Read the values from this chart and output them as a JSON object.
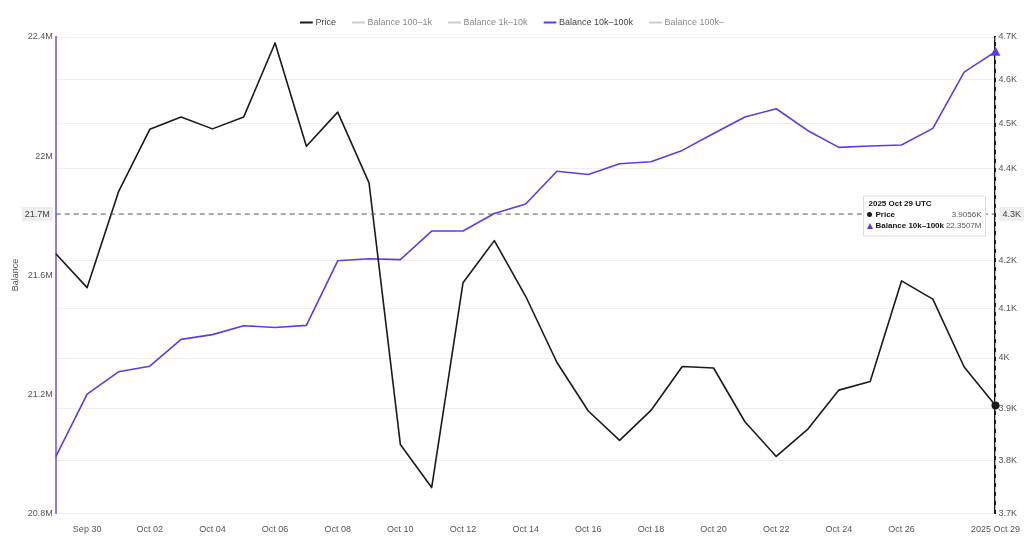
{
  "chart_data": {
    "type": "line",
    "ylabel": "Balance",
    "categories": [
      null,
      "Sep 30",
      null,
      "Oct 02",
      null,
      "Oct 04",
      null,
      "Oct 06",
      null,
      "Oct 08",
      null,
      "Oct 10",
      null,
      "Oct 12",
      null,
      "Oct 14",
      null,
      "Oct 16",
      null,
      "Oct 18",
      null,
      "Oct 20",
      null,
      "Oct 22",
      null,
      "Oct 24",
      null,
      "Oct 26",
      null,
      null,
      "2025 Oct 29"
    ],
    "series": [
      {
        "name": "Price",
        "color": "#1a1a1a",
        "axis": "y2",
        "values": [
          4.215,
          4.144,
          4.348,
          4.487,
          4.515,
          4.488,
          4.515,
          4.686,
          4.449,
          4.526,
          4.368,
          3.83,
          3.748,
          4.154,
          4.243,
          4.126,
          3.991,
          3.895,
          3.838,
          3.896,
          3.983,
          3.98,
          3.874,
          3.807,
          3.859,
          3.936,
          3.953,
          4.158,
          4.12,
          3.982,
          3.9056
        ]
      },
      {
        "name": "Balance 100–1k",
        "color": "#cccccc",
        "values": [
          null,
          null,
          null,
          null,
          null,
          null,
          null,
          null,
          null,
          null,
          null,
          null,
          null,
          null,
          null,
          null,
          null,
          null,
          null,
          null,
          null,
          null,
          null,
          null,
          null,
          null,
          null,
          null,
          null,
          null,
          null
        ]
      },
      {
        "name": "Balance 1k–10k",
        "color": "#cccccc",
        "values": [
          null,
          null,
          null,
          null,
          null,
          null,
          null,
          null,
          null,
          null,
          null,
          null,
          null,
          null,
          null,
          null,
          null,
          null,
          null,
          null,
          null,
          null,
          null,
          null,
          null,
          null,
          null,
          null,
          null,
          null,
          null
        ]
      },
      {
        "name": "Balance 10k–100k",
        "color": "#5a3ee0",
        "values": [
          20.99,
          21.2,
          21.275,
          21.294,
          21.384,
          21.4,
          21.43,
          21.424,
          21.431,
          21.648,
          21.655,
          21.652,
          21.748,
          21.748,
          21.807,
          21.839,
          21.949,
          21.938,
          21.974,
          21.981,
          22.019,
          22.076,
          22.131,
          22.159,
          22.086,
          22.029,
          22.034,
          22.037,
          22.093,
          22.282,
          22.3507
        ]
      },
      {
        "name": "Balance 100k–",
        "color": "#cccccc",
        "values": [
          null,
          null,
          null,
          null,
          null,
          null,
          null,
          null,
          null,
          null,
          null,
          null,
          null,
          null,
          null,
          null,
          null,
          null,
          null,
          null,
          null,
          null,
          null,
          null,
          null,
          null,
          null,
          null,
          null,
          null,
          null
        ]
      }
    ],
    "ylim": [
      20.8,
      22.4
    ],
    "yticks": [
      {
        "value": 20.8,
        "label": "20.8M"
      },
      {
        "value": 21.2,
        "label": "21.2M"
      },
      {
        "value": 21.6,
        "label": "21.6M"
      },
      {
        "value": 22,
        "label": "22M"
      },
      {
        "value": 22.4,
        "label": "22.4M"
      }
    ],
    "y2lim": [
      3.7,
      4.7
    ],
    "y2ticks": [
      {
        "value": 3.7,
        "label": "3.7K"
      },
      {
        "value": 3.8,
        "label": "3.8K"
      },
      {
        "value": 3.9,
        "label": "3.9K"
      },
      {
        "value": 4,
        "label": "4K"
      },
      {
        "value": 4.1,
        "label": "4.1K"
      },
      {
        "value": 4.2,
        "label": "4.2K"
      },
      {
        "value": 4.4,
        "label": "4.4K"
      },
      {
        "value": 4.5,
        "label": "4.5K"
      },
      {
        "value": 4.6,
        "label": "4.6K"
      },
      {
        "value": 4.7,
        "label": "4.7K"
      }
    ],
    "log": "y2",
    "grid": "y2",
    "legend": "top",
    "marker": "none",
    "line_style": "solid",
    "ref_lines": [
      {
        "axis": "y2",
        "value": 4.3,
        "label": "4.3K",
        "line_style": "dashed",
        "color": "#555555"
      },
      {
        "axis": "x",
        "value": "2025 Oct 29",
        "label": null,
        "line_style": "dashed",
        "color": "#bbbbbb"
      }
    ],
    "annotations": [
      "2025 Oct 29 UTC",
      "Price",
      "3.9056K",
      "Balance 10k–100k",
      "22.3507M",
      "21.7M"
    ]
  }
}
